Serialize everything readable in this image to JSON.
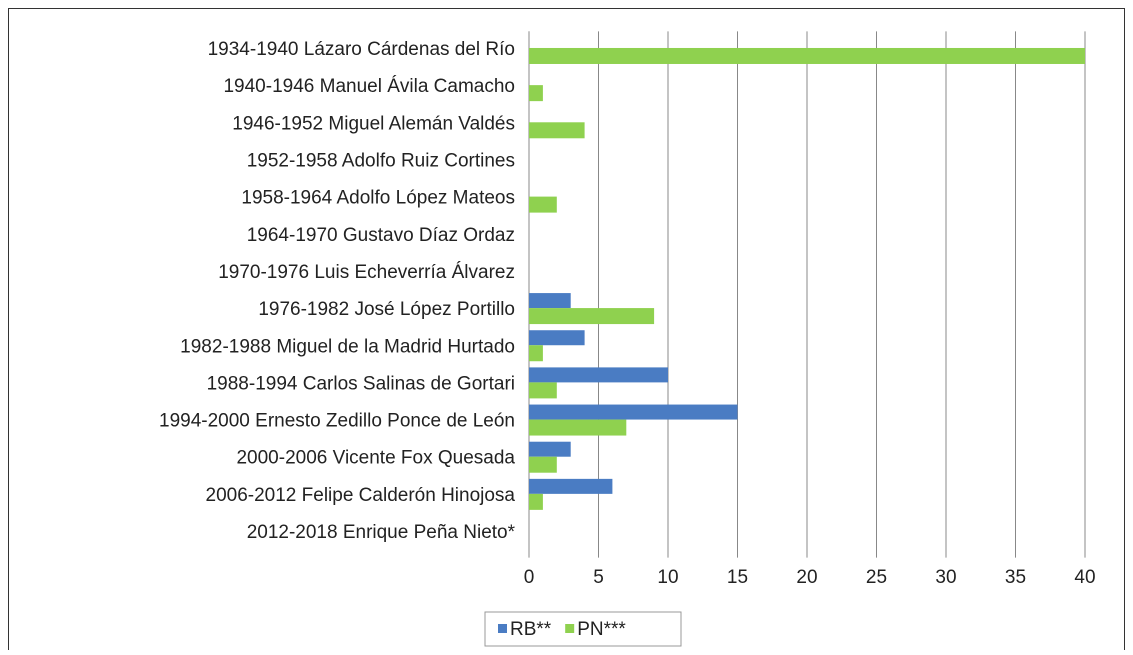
{
  "chart_data": {
    "type": "bar",
    "orientation": "horizontal",
    "categories": [
      "1934-1940 Lázaro Cárdenas del Río",
      "1940-1946 Manuel Ávila Camacho",
      "1946-1952 Miguel Alemán Valdés",
      "1952-1958 Adolfo Ruiz Cortines",
      "1958-1964 Adolfo López Mateos",
      "1964-1970 Gustavo Díaz Ordaz",
      "1970-1976 Luis Echeverría Álvarez",
      "1976-1982 José López Portillo",
      "1982-1988 Miguel de la Madrid Hurtado",
      "1988-1994 Carlos Salinas de Gortari",
      "1994-2000 Ernesto Zedillo Ponce de León",
      "2000-2006 Vicente Fox Quesada",
      "2006-2012 Felipe Calderón Hinojosa",
      "2012-2018 Enrique Peña Nieto*"
    ],
    "series": [
      {
        "name": "RB**",
        "color": "#4a7cc3",
        "values": [
          0,
          0,
          0,
          0,
          0,
          0,
          0,
          3,
          4,
          10,
          15,
          3,
          6,
          0
        ]
      },
      {
        "name": "PN***",
        "color": "#8fd14f",
        "values": [
          40,
          1,
          4,
          0,
          2,
          0,
          0,
          9,
          1,
          2,
          7,
          2,
          1,
          0
        ]
      }
    ],
    "xlim": [
      0,
      40
    ],
    "xticks": [
      0,
      5,
      10,
      15,
      20,
      25,
      30,
      35,
      40
    ],
    "grid": true,
    "legend": "bottom"
  }
}
